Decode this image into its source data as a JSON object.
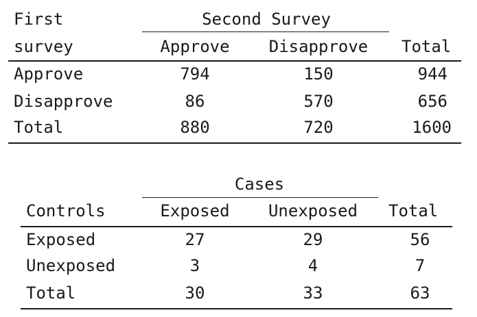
{
  "table1": {
    "row_header_line1": "First",
    "row_header_line2": "survey",
    "col_group": "Second Survey",
    "col_headers": [
      "Approve",
      "Disapprove",
      "Total"
    ],
    "rows": [
      {
        "label": "Approve",
        "cells": [
          "794",
          "150",
          "944"
        ]
      },
      {
        "label": "Disapprove",
        "cells": [
          "86",
          "570",
          "656"
        ]
      },
      {
        "label": "Total",
        "cells": [
          "880",
          "720",
          "1600"
        ]
      }
    ]
  },
  "table2": {
    "row_header": "Controls",
    "col_group": "Cases",
    "col_headers": [
      "Exposed",
      "Unexposed",
      "Total"
    ],
    "rows": [
      {
        "label": "Exposed",
        "cells": [
          "27",
          "29",
          "56"
        ]
      },
      {
        "label": "Unexposed",
        "cells": [
          "3",
          "4",
          "7"
        ]
      },
      {
        "label": "Total",
        "cells": [
          "30",
          "33",
          "63"
        ]
      }
    ]
  }
}
